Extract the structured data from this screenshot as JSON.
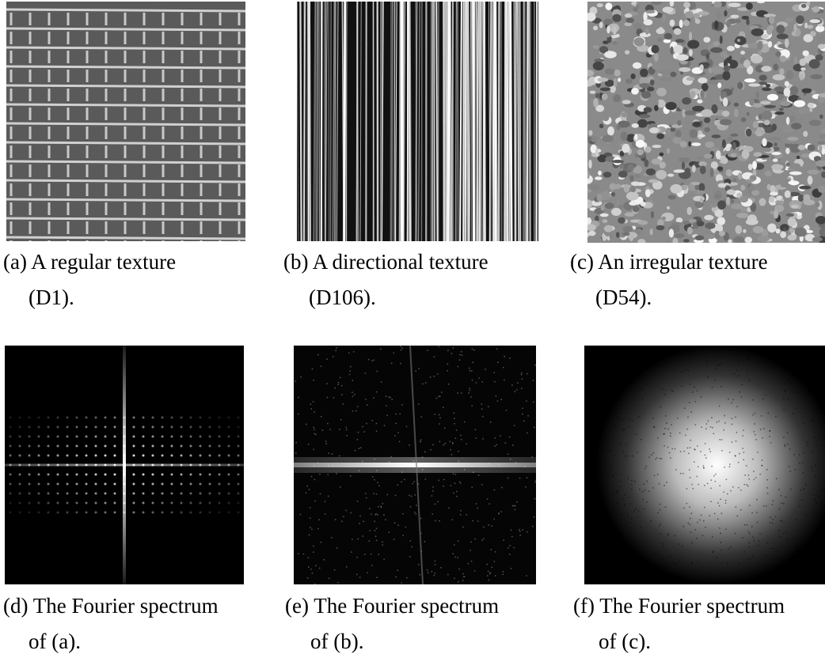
{
  "figure": {
    "panels": [
      {
        "caption": [
          "(a) A regular texture",
          "(D1)."
        ]
      },
      {
        "caption": [
          "(b) A directional texture",
          "(D106)."
        ]
      },
      {
        "caption": [
          "(c) An irregular texture",
          "(D54)."
        ]
      },
      {
        "caption": [
          "(d) The Fourier spectrum",
          "of (a)."
        ]
      },
      {
        "caption": [
          "(e) The Fourier spectrum",
          "of (b)."
        ]
      },
      {
        "caption": [
          "(f) The Fourier spectrum",
          "of (c)."
        ]
      }
    ]
  }
}
